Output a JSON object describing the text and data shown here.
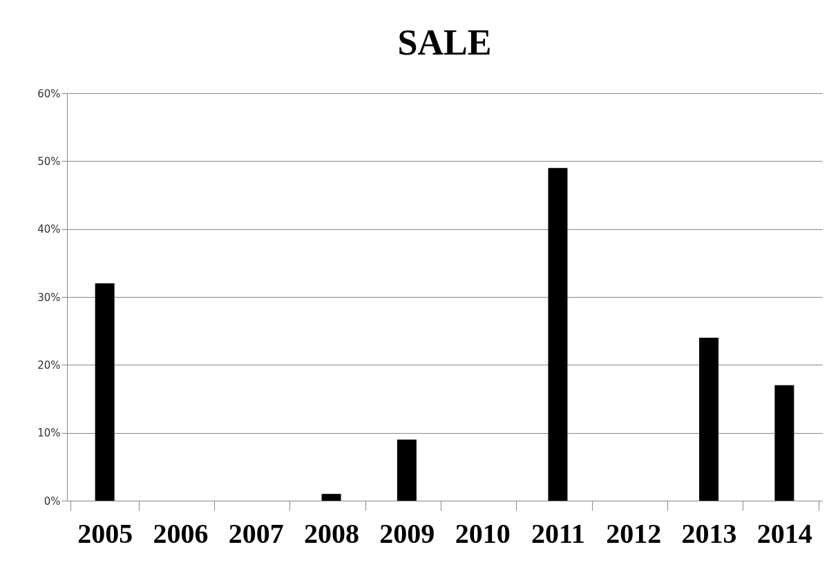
{
  "chart_data": {
    "type": "bar",
    "title": "SALE",
    "categories": [
      "2005",
      "2006",
      "2007",
      "2008",
      "2009",
      "2010",
      "2011",
      "2012",
      "2013",
      "2014"
    ],
    "values": [
      32,
      0,
      0,
      1,
      9,
      0,
      49,
      0,
      24,
      17
    ],
    "color": "#000000",
    "ylim": [
      0,
      60
    ],
    "yticks": [
      {
        "value": 0,
        "label": "0%"
      },
      {
        "value": 10,
        "label": "10%"
      },
      {
        "value": 20,
        "label": "20%"
      },
      {
        "value": 30,
        "label": "30%"
      },
      {
        "value": 40,
        "label": "40%"
      },
      {
        "value": 50,
        "label": "50%"
      },
      {
        "value": 60,
        "label": "60%"
      }
    ],
    "grid": "y"
  }
}
